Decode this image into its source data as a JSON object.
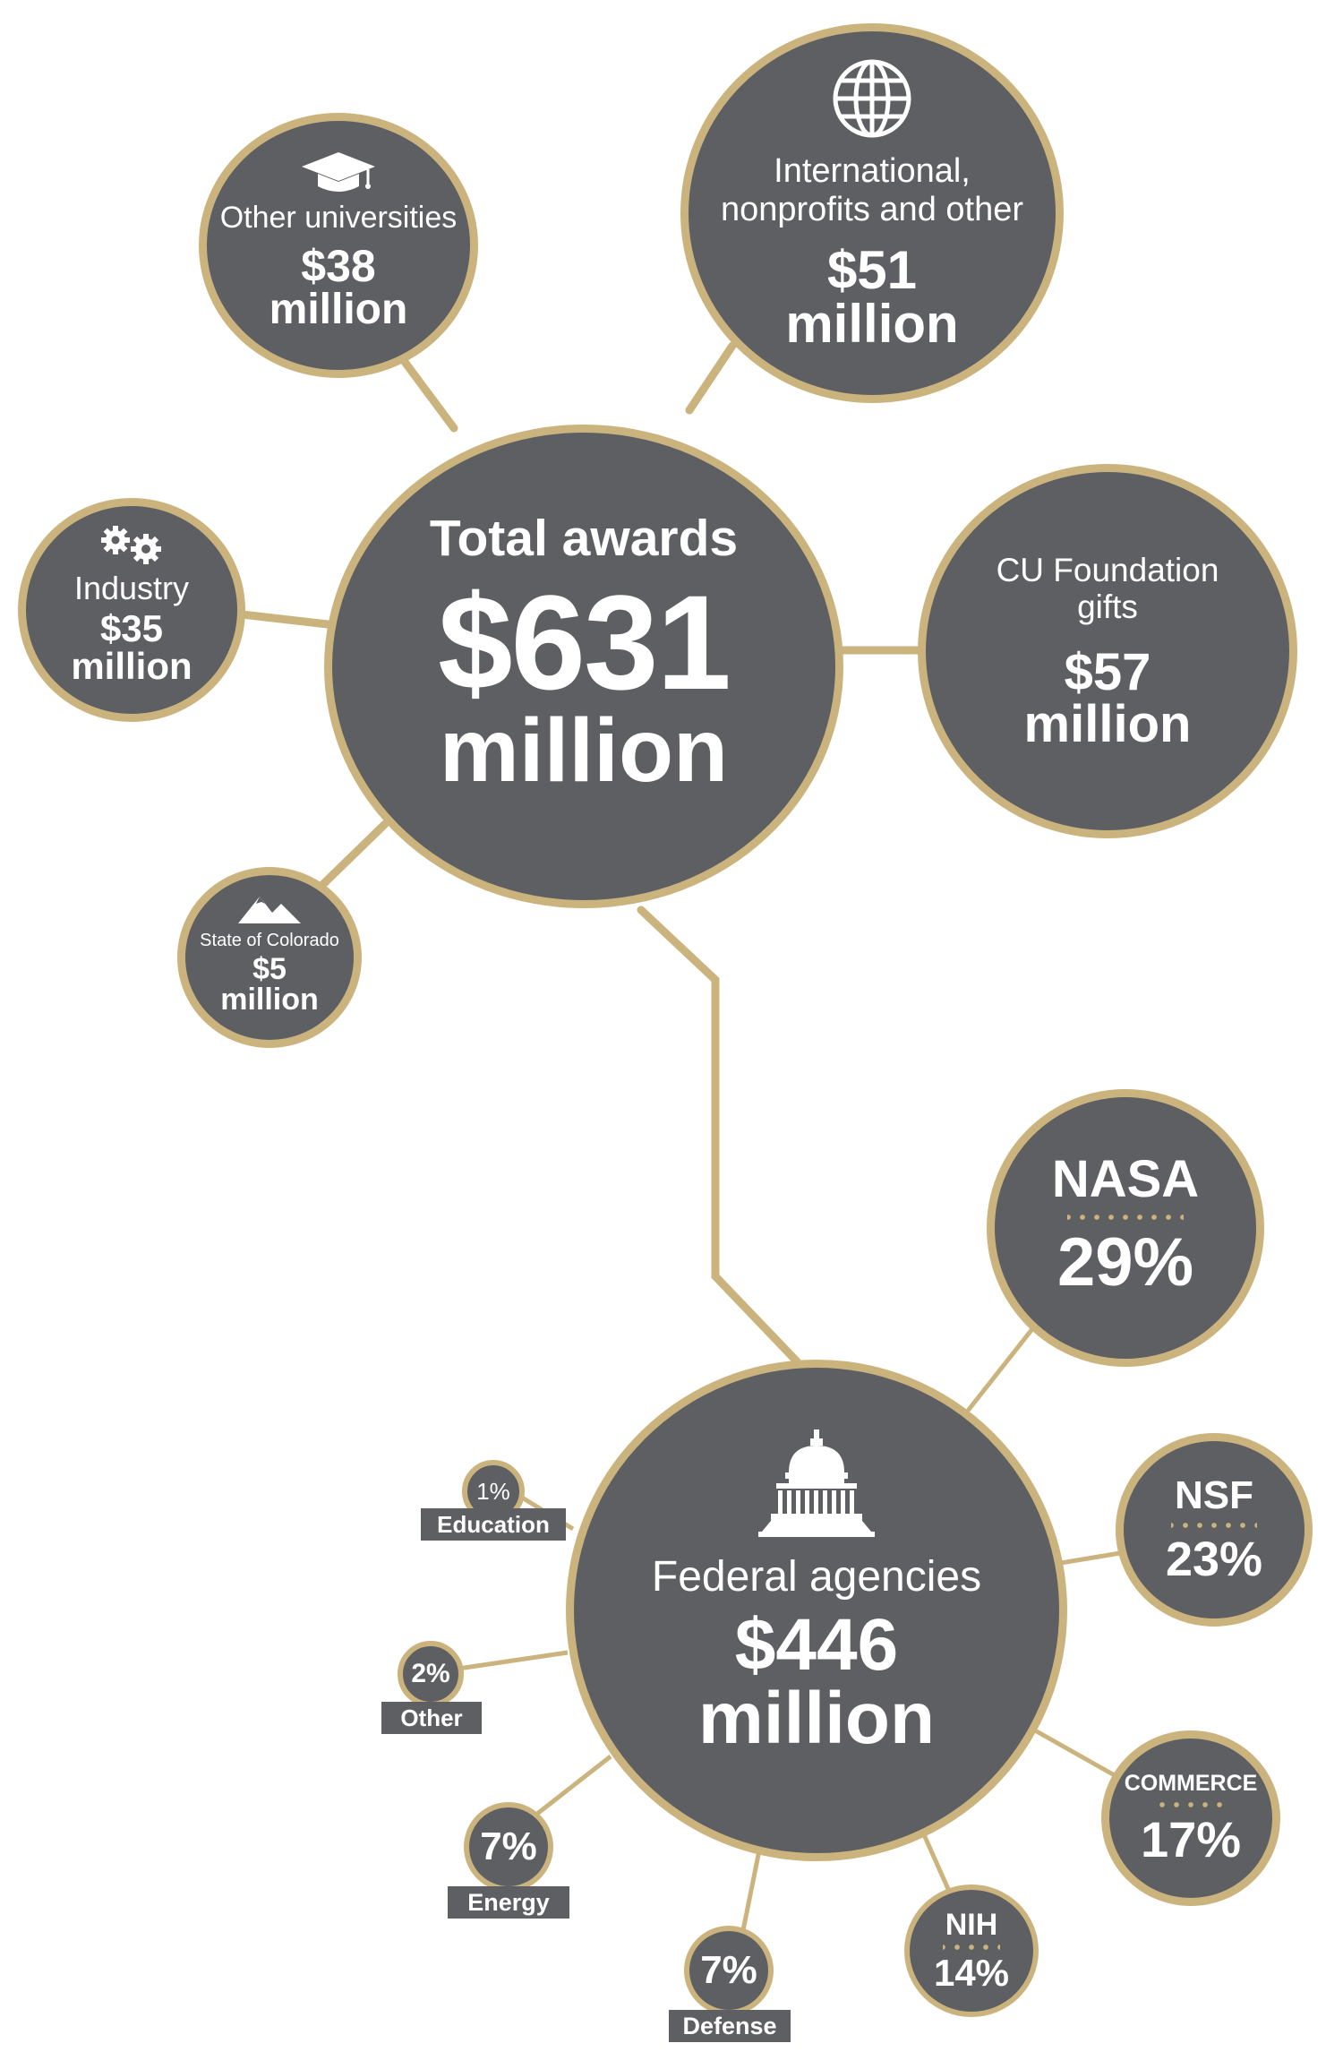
{
  "total": {
    "label": "Total awards",
    "amount": "$631",
    "unit": "million"
  },
  "sources": {
    "other_universities": {
      "label": "Other universities",
      "amount": "$38",
      "unit": "million"
    },
    "international": {
      "label": "International, nonprofits and other",
      "amount": "$51",
      "unit": "million"
    },
    "industry": {
      "label": "Industry",
      "amount": "$35",
      "unit": "million"
    },
    "foundation": {
      "label": "CU Foundation gifts",
      "amount": "$57",
      "unit": "million"
    },
    "state": {
      "label": "State of Colorado",
      "amount": "$5",
      "unit": "million"
    }
  },
  "federal": {
    "label": "Federal agencies",
    "amount": "$446",
    "unit": "million",
    "agencies": {
      "nasa": {
        "name": "NASA",
        "percent": "29%"
      },
      "nsf": {
        "name": "NSF",
        "percent": "23%"
      },
      "commerce": {
        "name": "COMMERCE",
        "percent": "17%"
      },
      "nih": {
        "name": "NIH",
        "percent": "14%"
      },
      "defense": {
        "name": "Defense",
        "percent": "7%"
      },
      "energy": {
        "name": "Energy",
        "percent": "7%"
      },
      "other": {
        "name": "Other",
        "percent": "2%"
      },
      "education": {
        "name": "Education",
        "percent": "1%"
      }
    }
  },
  "colors": {
    "circle": "#5e5f63",
    "accent": "#cbb37e",
    "text": "#ffffff"
  },
  "icons": [
    "graduation-cap-icon",
    "globe-icon",
    "gears-icon",
    "mountains-icon",
    "capitol-icon"
  ]
}
